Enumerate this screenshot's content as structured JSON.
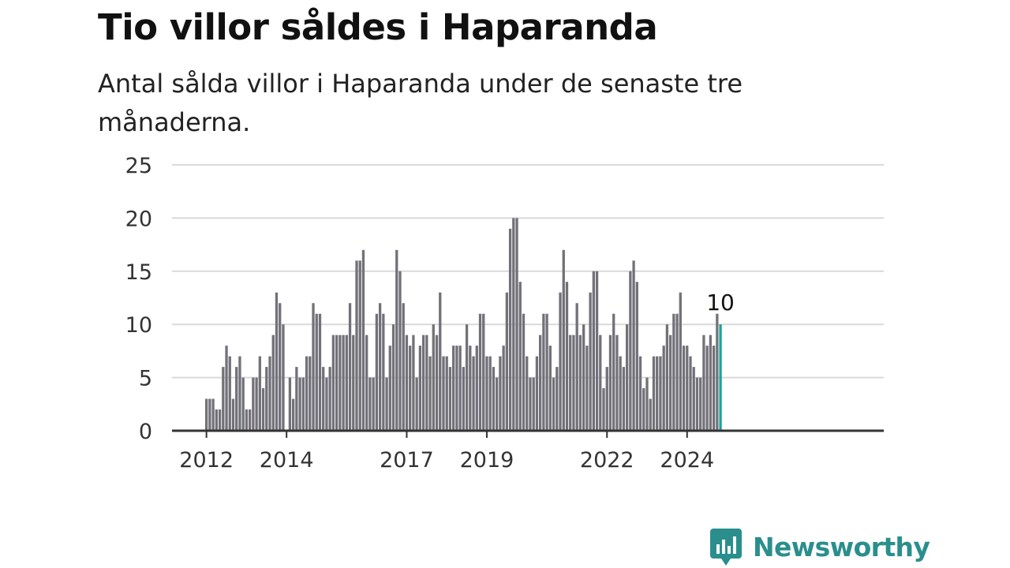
{
  "title": "Tio villor såldes i Haparanda",
  "subtitle": "Antal sålda villor i Haparanda under de senaste tre månaderna.",
  "brand": {
    "name": "Newsworthy",
    "color": "#2a8f8c"
  },
  "colors": {
    "bar": "#727179",
    "highlight": "#18a39c",
    "grid": "#d9d9d9",
    "axis": "#333333"
  },
  "chart_data": {
    "type": "bar",
    "title": "Tio villor såldes i Haparanda",
    "subtitle": "Antal sålda villor i Haparanda under de senaste tre månaderna.",
    "xlabel": "",
    "ylabel": "",
    "ylim": [
      0,
      25
    ],
    "y_ticks": [
      "0",
      "5",
      "10",
      "15",
      "20",
      "25"
    ],
    "x_ticks": [
      {
        "label": "2012",
        "index": 0
      },
      {
        "label": "2014",
        "index": 24
      },
      {
        "label": "2017",
        "index": 60
      },
      {
        "label": "2019",
        "index": 84
      },
      {
        "label": "2022",
        "index": 120
      },
      {
        "label": "2024",
        "index": 144
      }
    ],
    "grid": true,
    "highlight": {
      "index": 154,
      "value": 10,
      "label": "10"
    },
    "values": [
      3,
      3,
      3,
      2,
      2,
      6,
      8,
      7,
      3,
      6,
      7,
      5,
      2,
      2,
      5,
      5,
      7,
      4,
      6,
      7,
      9,
      13,
      12,
      10,
      0,
      5,
      3,
      6,
      5,
      5,
      7,
      7,
      12,
      11,
      11,
      6,
      5,
      6,
      9,
      9,
      9,
      9,
      9,
      12,
      9,
      16,
      16,
      17,
      9,
      5,
      5,
      11,
      12,
      11,
      5,
      8,
      10,
      17,
      15,
      12,
      9,
      8,
      9,
      5,
      8,
      9,
      9,
      7,
      10,
      9,
      13,
      7,
      7,
      6,
      8,
      8,
      8,
      6,
      10,
      8,
      7,
      8,
      11,
      11,
      7,
      7,
      6,
      5,
      7,
      8,
      13,
      19,
      20,
      20,
      14,
      11,
      7,
      5,
      5,
      7,
      9,
      11,
      11,
      8,
      5,
      6,
      13,
      17,
      14,
      9,
      9,
      12,
      9,
      10,
      8,
      13,
      15,
      15,
      9,
      4,
      6,
      9,
      11,
      9,
      7,
      6,
      10,
      15,
      16,
      14,
      7,
      4,
      5,
      3,
      7,
      7,
      7,
      8,
      10,
      9,
      11,
      11,
      13,
      8,
      8,
      7,
      6,
      5,
      5,
      9,
      8,
      9,
      8,
      11,
      10
    ]
  }
}
